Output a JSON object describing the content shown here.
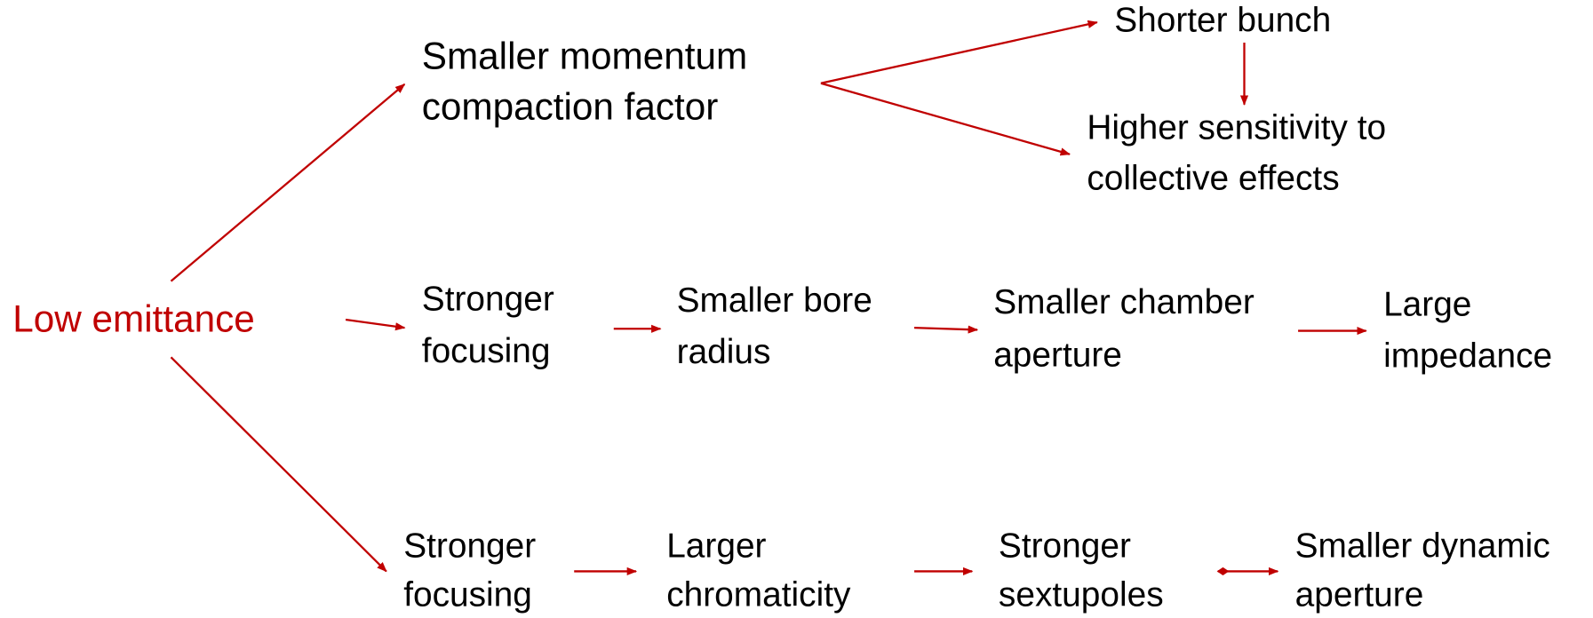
{
  "nodes": [
    {
      "id": "low",
      "lines": [
        "Low emittance"
      ]
    },
    {
      "id": "mcf",
      "lines": [
        "Smaller momentum",
        "compaction factor"
      ]
    },
    {
      "id": "bunch",
      "lines": [
        "Shorter bunch"
      ]
    },
    {
      "id": "sens",
      "lines": [
        "Higher sensitivity to",
        "collective effects"
      ]
    },
    {
      "id": "sf1",
      "lines": [
        "Stronger",
        "focusing"
      ]
    },
    {
      "id": "bore",
      "lines": [
        "Smaller bore",
        "radius"
      ]
    },
    {
      "id": "chamber",
      "lines": [
        "Smaller chamber",
        "aperture"
      ]
    },
    {
      "id": "imp",
      "lines": [
        "Large",
        "impedance"
      ]
    },
    {
      "id": "sf2",
      "lines": [
        "Stronger",
        "focusing"
      ]
    },
    {
      "id": "chrom",
      "lines": [
        "Larger",
        "chromaticity"
      ]
    },
    {
      "id": "sext",
      "lines": [
        "Stronger",
        "sextupoles"
      ]
    },
    {
      "id": "da",
      "lines": [
        "Smaller dynamic",
        "aperture"
      ]
    }
  ]
}
